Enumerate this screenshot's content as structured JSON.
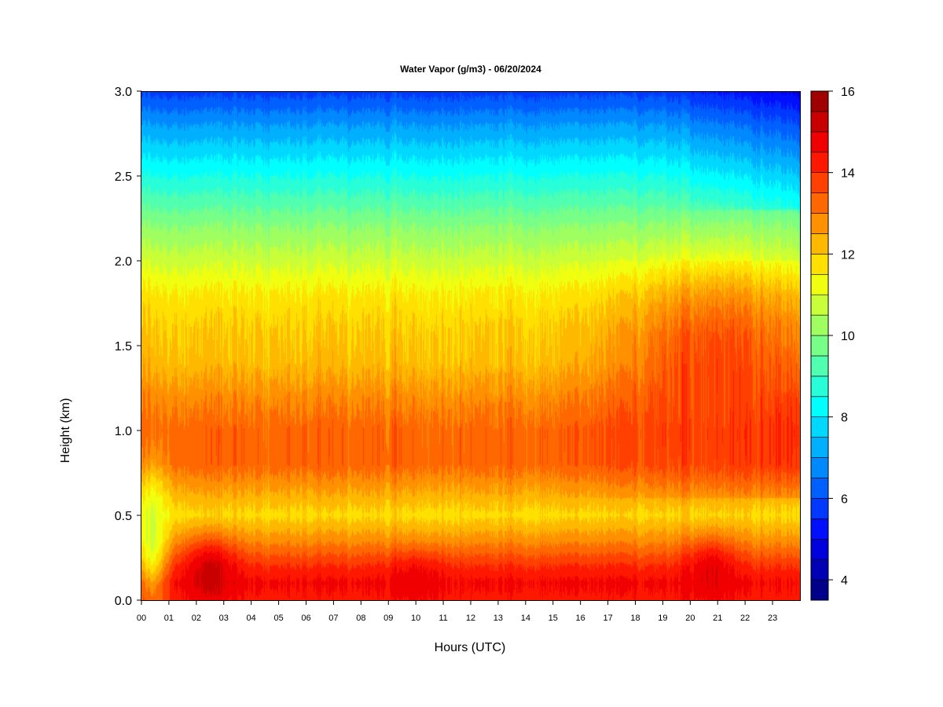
{
  "chart_data": {
    "type": "heatmap",
    "title": "Water Vapor (g/m3) - 06/20/2024",
    "xlabel": "Hours (UTC)",
    "ylabel": "Height (km)",
    "xlim": [
      0,
      24
    ],
    "ylim": [
      0,
      3
    ],
    "x_ticks": [
      "00",
      "01",
      "02",
      "03",
      "04",
      "05",
      "06",
      "07",
      "08",
      "09",
      "10",
      "11",
      "12",
      "13",
      "14",
      "15",
      "16",
      "17",
      "18",
      "19",
      "20",
      "21",
      "22",
      "23"
    ],
    "y_ticks": [
      "0.0",
      "0.5",
      "1.0",
      "1.5",
      "2.0",
      "2.5",
      "3.0"
    ],
    "colorbar": {
      "min": 3.5,
      "max": 16,
      "step": 0.5,
      "tick_values": [
        4,
        6,
        8,
        10,
        12,
        14,
        16
      ],
      "tick_labels": [
        "4",
        "6",
        "8",
        "10",
        "12",
        "14",
        "16"
      ],
      "colors": [
        "#00008B",
        "#0000B4",
        "#0000DC",
        "#0010FF",
        "#0038FF",
        "#0060FF",
        "#0088FF",
        "#00B0FF",
        "#00D8FF",
        "#00FFFF",
        "#28FFD8",
        "#50FFB0",
        "#78FF88",
        "#A0FF60",
        "#C8FF38",
        "#F0FF10",
        "#FFE000",
        "#FFB800",
        "#FF9000",
        "#FF6800",
        "#FF4000",
        "#FF1800",
        "#F00000",
        "#C80000",
        "#A00000"
      ]
    },
    "height_profile": {
      "heights_km": [
        0.0,
        0.1,
        0.2,
        0.35,
        0.5,
        0.6,
        0.8,
        1.0,
        1.2,
        1.4,
        1.6,
        1.8,
        2.0,
        2.2,
        2.4,
        2.6,
        2.8,
        3.0
      ],
      "values": [
        14.3,
        14.6,
        14.0,
        12.8,
        11.8,
        12.3,
        13.3,
        13.3,
        12.8,
        12.2,
        12.0,
        11.6,
        10.8,
        10.0,
        9.0,
        8.0,
        7.0,
        5.8
      ]
    },
    "features": [
      {
        "hour_range": [
          0.0,
          0.7
        ],
        "height_range": [
          0.0,
          0.8
        ],
        "value": 10.8
      },
      {
        "hour_range": [
          1.7,
          3.3
        ],
        "height_range": [
          0.0,
          0.3
        ],
        "value": 15.2
      },
      {
        "hour_range": [
          9.2,
          11.0
        ],
        "height_range": [
          0.0,
          0.2
        ],
        "value": 14.8
      },
      {
        "hour_range": [
          20.0,
          21.5
        ],
        "height_range": [
          0.0,
          0.3
        ],
        "value": 15.0
      },
      {
        "hour_range": [
          18.0,
          23.8
        ],
        "height_range": [
          0.8,
          1.9
        ],
        "value": 13.8
      }
    ]
  }
}
